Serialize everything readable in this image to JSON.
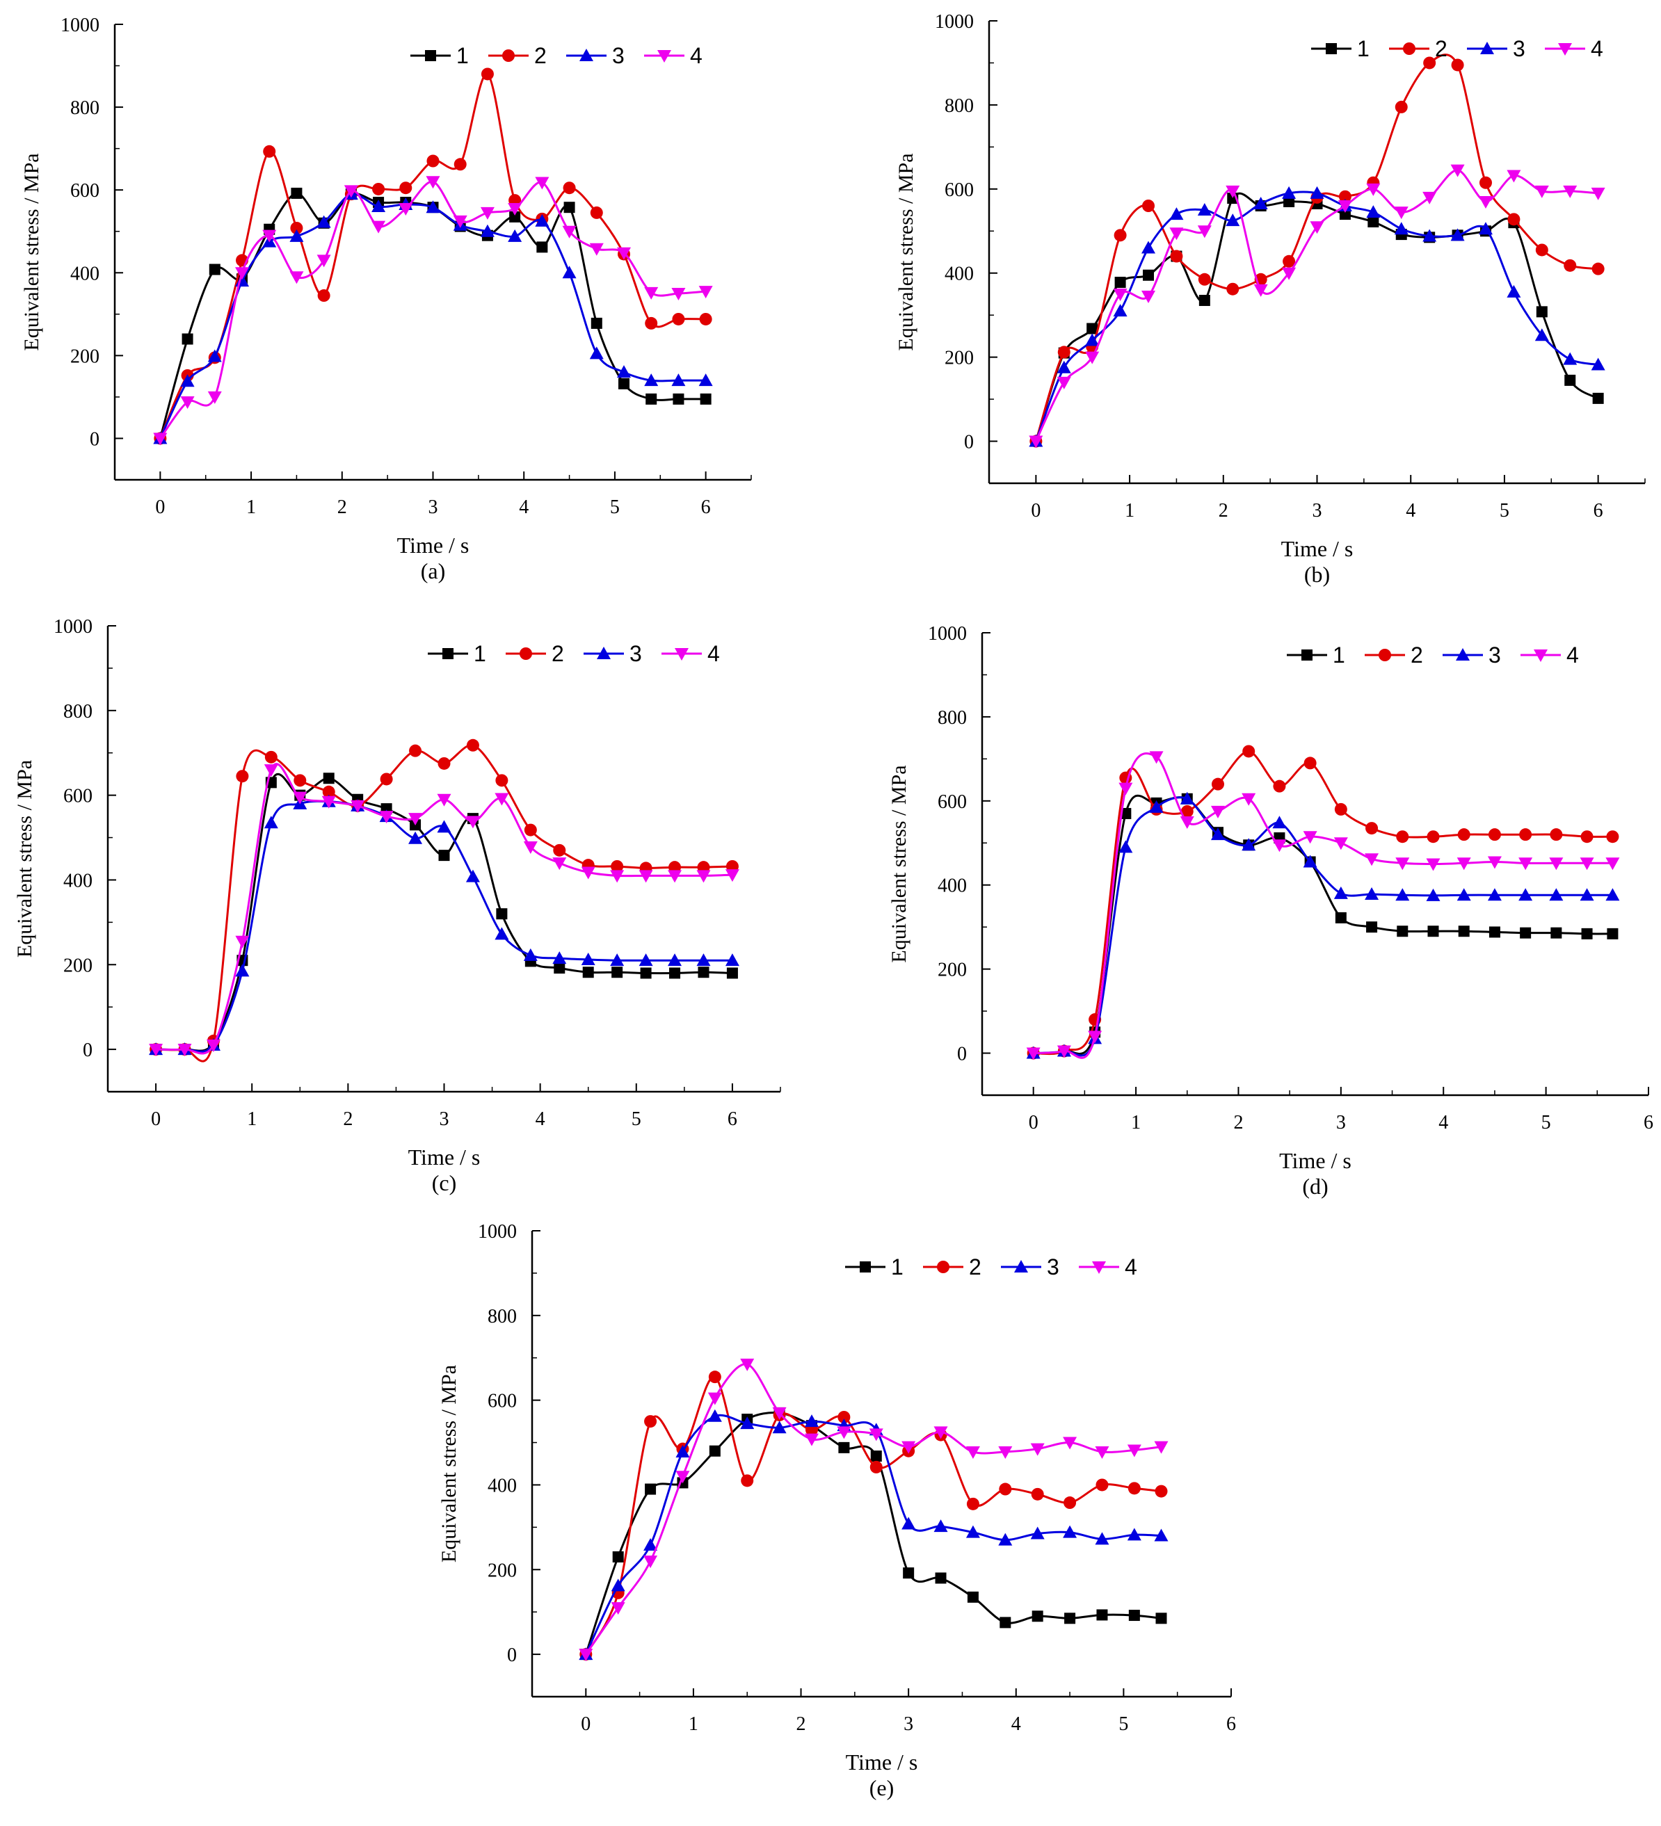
{
  "chart_data": [
    {
      "panel": "(a)",
      "type": "line",
      "xlabel": "Time / s",
      "ylabel": "Equivalent stress / MPa",
      "xlim": [
        -0.5,
        6.5
      ],
      "ylim": [
        -100,
        1000
      ],
      "xticks": [
        0,
        1,
        2,
        3,
        4,
        5,
        6
      ],
      "yticks": [
        0,
        200,
        400,
        600,
        800,
        1000
      ],
      "legend_position": "top-right",
      "x": [
        0,
        0.3,
        0.6,
        0.9,
        1.2,
        1.5,
        1.8,
        2.1,
        2.4,
        2.7,
        3.0,
        3.3,
        3.6,
        3.9,
        4.2,
        4.5,
        4.8,
        5.1,
        5.4,
        5.7,
        6.0
      ],
      "series": [
        {
          "name": "1",
          "color": "#000000",
          "marker": "square",
          "values": [
            0,
            240,
            408,
            385,
            505,
            592,
            520,
            590,
            570,
            570,
            558,
            512,
            490,
            535,
            462,
            558,
            278,
            132,
            95,
            95,
            95
          ]
        },
        {
          "name": "2",
          "color": "#e00000",
          "marker": "circle",
          "values": [
            0,
            152,
            195,
            430,
            693,
            508,
            345,
            590,
            602,
            605,
            670,
            662,
            880,
            575,
            530,
            605,
            545,
            445,
            278,
            288,
            288
          ]
        },
        {
          "name": "3",
          "color": "#0000e0",
          "marker": "triangle-up",
          "values": [
            0,
            138,
            198,
            380,
            475,
            488,
            522,
            590,
            560,
            565,
            558,
            515,
            500,
            488,
            525,
            400,
            205,
            160,
            140,
            140,
            140
          ]
        },
        {
          "name": "4",
          "color": "#ee00ee",
          "marker": "triangle-down",
          "values": [
            0,
            88,
            100,
            400,
            490,
            390,
            430,
            598,
            512,
            555,
            620,
            525,
            545,
            555,
            618,
            500,
            458,
            448,
            352,
            350,
            355
          ]
        }
      ]
    },
    {
      "panel": "(b)",
      "type": "line",
      "xlabel": "Time / s",
      "ylabel": "Equivalent stress / MPa",
      "xlim": [
        -0.5,
        6.5
      ],
      "ylim": [
        -100,
        1000
      ],
      "xticks": [
        0,
        1,
        2,
        3,
        4,
        5,
        6
      ],
      "yticks": [
        0,
        200,
        400,
        600,
        800,
        1000
      ],
      "legend_position": "top-right",
      "x": [
        0,
        0.3,
        0.6,
        0.9,
        1.2,
        1.5,
        1.8,
        2.1,
        2.4,
        2.7,
        3.0,
        3.3,
        3.6,
        3.9,
        4.2,
        4.5,
        4.8,
        5.1,
        5.4,
        5.7,
        6.0
      ],
      "series": [
        {
          "name": "1",
          "color": "#000000",
          "marker": "square",
          "values": [
            0,
            210,
            268,
            378,
            395,
            440,
            335,
            578,
            560,
            570,
            565,
            540,
            522,
            492,
            485,
            490,
            500,
            520,
            308,
            145,
            102
          ]
        },
        {
          "name": "2",
          "color": "#e00000",
          "marker": "circle",
          "values": [
            0,
            212,
            225,
            490,
            560,
            440,
            385,
            362,
            385,
            428,
            580,
            582,
            615,
            795,
            900,
            895,
            615,
            528,
            455,
            418,
            410
          ]
        },
        {
          "name": "3",
          "color": "#0000e0",
          "marker": "triangle-up",
          "values": [
            0,
            175,
            240,
            310,
            460,
            540,
            550,
            525,
            565,
            590,
            590,
            560,
            545,
            505,
            488,
            490,
            505,
            355,
            252,
            195,
            182
          ]
        },
        {
          "name": "4",
          "color": "#ee00ee",
          "marker": "triangle-down",
          "values": [
            0,
            140,
            200,
            350,
            345,
            495,
            500,
            595,
            360,
            400,
            510,
            560,
            600,
            545,
            580,
            645,
            570,
            632,
            595,
            595,
            590
          ]
        }
      ]
    },
    {
      "panel": "(c)",
      "type": "line",
      "xlabel": "Time / s",
      "ylabel": "Equivalent stress / MPa",
      "xlim": [
        -0.5,
        6.5
      ],
      "ylim": [
        -100,
        1000
      ],
      "xticks": [
        0,
        1,
        2,
        3,
        4,
        5,
        6
      ],
      "yticks": [
        0,
        200,
        400,
        600,
        800,
        1000
      ],
      "legend_position": "top-right",
      "x": [
        0,
        0.3,
        0.6,
        0.9,
        1.2,
        1.5,
        1.8,
        2.1,
        2.4,
        2.7,
        3.0,
        3.3,
        3.6,
        3.9,
        4.2,
        4.5,
        4.8,
        5.1,
        5.4,
        5.7,
        6.0
      ],
      "series": [
        {
          "name": "1",
          "color": "#000000",
          "marker": "square",
          "values": [
            0,
            0,
            15,
            210,
            630,
            600,
            640,
            590,
            568,
            530,
            458,
            545,
            320,
            208,
            192,
            182,
            182,
            180,
            180,
            182,
            180
          ]
        },
        {
          "name": "2",
          "color": "#e00000",
          "marker": "circle",
          "values": [
            0,
            0,
            20,
            645,
            690,
            635,
            608,
            575,
            638,
            705,
            675,
            718,
            635,
            518,
            470,
            435,
            432,
            428,
            430,
            430,
            432
          ]
        },
        {
          "name": "3",
          "color": "#0000e0",
          "marker": "triangle-up",
          "values": [
            0,
            0,
            10,
            185,
            535,
            580,
            585,
            575,
            550,
            498,
            525,
            408,
            272,
            222,
            215,
            212,
            210,
            210,
            210,
            210,
            210
          ]
        },
        {
          "name": "4",
          "color": "#ee00ee",
          "marker": "triangle-down",
          "values": [
            0,
            0,
            10,
            255,
            660,
            595,
            585,
            575,
            550,
            545,
            590,
            538,
            592,
            478,
            440,
            418,
            410,
            410,
            410,
            410,
            412
          ]
        }
      ]
    },
    {
      "panel": "(d)",
      "type": "line",
      "xlabel": "Time / s",
      "ylabel": "Equivalent stress / MPa",
      "xlim": [
        -0.5,
        6.0
      ],
      "ylim": [
        -100,
        1000
      ],
      "xticks": [
        0,
        1,
        2,
        3,
        4,
        5,
        6
      ],
      "yticks": [
        0,
        200,
        400,
        600,
        800,
        1000
      ],
      "legend_position": "top-right",
      "x": [
        0,
        0.3,
        0.6,
        0.9,
        1.2,
        1.5,
        1.8,
        2.1,
        2.4,
        2.7,
        3.0,
        3.3,
        3.6,
        3.9,
        4.2,
        4.5,
        4.8,
        5.1,
        5.4,
        5.65
      ],
      "series": [
        {
          "name": "1",
          "color": "#000000",
          "marker": "square",
          "values": [
            0,
            5,
            50,
            570,
            595,
            605,
            525,
            495,
            512,
            455,
            322,
            300,
            290,
            290,
            290,
            288,
            286,
            286,
            284,
            284
          ]
        },
        {
          "name": "2",
          "color": "#e00000",
          "marker": "circle",
          "values": [
            0,
            5,
            80,
            655,
            580,
            575,
            640,
            718,
            635,
            690,
            580,
            535,
            515,
            515,
            520,
            520,
            520,
            520,
            515,
            515
          ]
        },
        {
          "name": "3",
          "color": "#0000e0",
          "marker": "triangle-up",
          "values": [
            0,
            5,
            35,
            490,
            585,
            605,
            520,
            495,
            548,
            455,
            380,
            378,
            376,
            375,
            376,
            376,
            376,
            376,
            376,
            376
          ]
        },
        {
          "name": "4",
          "color": "#ee00ee",
          "marker": "triangle-down",
          "values": [
            0,
            5,
            40,
            630,
            705,
            550,
            575,
            605,
            495,
            515,
            500,
            462,
            452,
            450,
            452,
            455,
            452,
            452,
            452,
            452
          ]
        }
      ]
    },
    {
      "panel": "(e)",
      "type": "line",
      "xlabel": "Time / s",
      "ylabel": "Equivalent stress / MPa",
      "xlim": [
        -0.5,
        6.0
      ],
      "ylim": [
        -100,
        1000
      ],
      "xticks": [
        0,
        1,
        2,
        3,
        4,
        5,
        6
      ],
      "yticks": [
        0,
        200,
        400,
        600,
        800,
        1000
      ],
      "legend_position": "top-right",
      "x": [
        0,
        0.3,
        0.6,
        0.9,
        1.2,
        1.5,
        1.8,
        2.1,
        2.4,
        2.7,
        3.0,
        3.3,
        3.6,
        3.9,
        4.2,
        4.5,
        4.8,
        5.1,
        5.35
      ],
      "series": [
        {
          "name": "1",
          "color": "#000000",
          "marker": "square",
          "values": [
            0,
            230,
            390,
            405,
            480,
            555,
            570,
            540,
            488,
            468,
            192,
            180,
            135,
            75,
            90,
            85,
            93,
            92,
            85
          ]
        },
        {
          "name": "2",
          "color": "#e00000",
          "marker": "circle",
          "values": [
            0,
            145,
            550,
            485,
            655,
            410,
            565,
            530,
            560,
            442,
            480,
            518,
            355,
            390,
            378,
            358,
            400,
            392,
            385
          ]
        },
        {
          "name": "3",
          "color": "#0000e0",
          "marker": "triangle-up",
          "values": [
            0,
            162,
            258,
            478,
            562,
            545,
            535,
            550,
            540,
            530,
            308,
            302,
            288,
            270,
            285,
            288,
            272,
            282,
            280
          ]
        },
        {
          "name": "4",
          "color": "#ee00ee",
          "marker": "triangle-down",
          "values": [
            0,
            110,
            220,
            420,
            605,
            685,
            570,
            508,
            525,
            520,
            490,
            525,
            478,
            478,
            485,
            500,
            478,
            482,
            490
          ]
        }
      ]
    }
  ]
}
